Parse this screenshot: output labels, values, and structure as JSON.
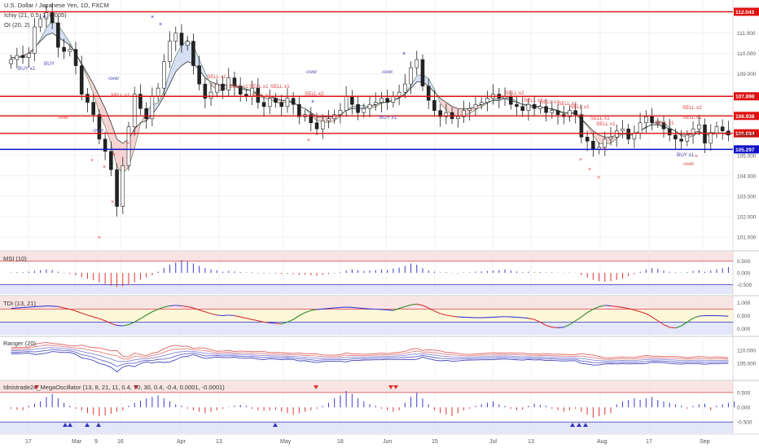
{
  "header": {
    "symbol_title": "U.S. Dollar / Japanese Yen, 1D, FXCM",
    "ichimoku_label": "Ichiy (21, 0.5, 1, 0.005)",
    "oi_label": "OI (20, 2)"
  },
  "colors": {
    "bull": "#26a69a",
    "bear": "#ef5350",
    "candle_body_up": "#ffffff",
    "candle_body_down": "#222222",
    "resistance": "#e01010",
    "support": "#1010c8",
    "cloud_bear": "#f4c4c4",
    "cloud_bull": "#c8d4f0",
    "buy_marker": "#2020c0",
    "sell_marker": "#e04040"
  },
  "chart_data": [
    {
      "type": "line",
      "title": "U.S. Dollar / Japanese Yen, 1D, FXCM",
      "x_ticks": [
        "17",
        "Mar",
        "9",
        "16",
        "Apr",
        "13",
        "May",
        "18",
        "Jun",
        "15",
        "Jul",
        "13",
        "Aug",
        "17",
        "Sep"
      ],
      "ylim": [
        100.6,
        112.3
      ],
      "y_ticks": [
        "101.000",
        "102.000",
        "103.000",
        "104.000",
        "105.000",
        "106.000",
        "107.000",
        "108.000",
        "109.000",
        "110.000",
        "111.000",
        "112.000"
      ],
      "levels": [
        {
          "value": 112.043,
          "label": "112.043",
          "color": "#e01010"
        },
        {
          "value": 107.898,
          "label": "107.898",
          "color": "#e01010"
        },
        {
          "value": 106.938,
          "label": "106.938",
          "color": "#e01010"
        },
        {
          "value": 106.084,
          "label": "106.084",
          "color": "#e01010"
        },
        {
          "value": 105.297,
          "label": "105.297",
          "color": "#1010c8"
        }
      ],
      "current_price": {
        "value": 106.024,
        "label": "106.024"
      },
      "series": [
        {
          "name": "Close",
          "values": [
            109.7,
            109.9,
            109.8,
            110.0,
            111.3,
            111.7,
            112.0,
            111.5,
            110.3,
            110.1,
            110.2,
            109.4,
            108.0,
            107.6,
            107.0,
            105.8,
            105.2,
            104.3,
            102.5,
            104.5,
            106.4,
            108.0,
            107.3,
            106.8,
            107.9,
            108.3,
            109.6,
            110.6,
            111.0,
            110.4,
            110.6,
            109.4,
            108.5,
            107.8,
            108.1,
            108.5,
            108.2,
            108.8,
            108.4,
            108.0,
            107.9,
            108.3,
            107.6,
            107.4,
            107.8,
            107.6,
            107.4,
            107.8,
            107.5,
            106.9,
            107.0,
            106.6,
            106.3,
            106.7,
            106.8,
            107.0,
            107.2,
            107.9,
            107.5,
            107.1,
            107.3,
            107.5,
            107.6,
            107.8,
            107.6,
            107.9,
            108.1,
            108.5,
            109.3,
            109.7,
            108.4,
            107.7,
            107.2,
            106.9,
            107.1,
            106.8,
            106.9,
            107.2,
            107.3,
            107.5,
            107.6,
            107.8,
            108.0,
            107.8,
            107.9,
            107.5,
            107.4,
            107.2,
            107.5,
            107.3,
            107.4,
            107.1,
            107.2,
            107.0,
            106.9,
            107.2,
            107.0,
            105.9,
            105.7,
            105.3,
            105.4,
            105.8,
            105.9,
            106.2,
            106.3,
            105.8,
            106.1,
            106.6,
            106.9,
            106.6,
            106.6,
            106.3,
            106.0,
            105.8,
            105.7,
            106.0,
            106.3,
            106.5,
            105.6,
            106.1,
            106.4,
            106.2,
            106.0
          ],
          "color": "#222222"
        },
        {
          "name": "Kijun",
          "color": "#222222",
          "values": [
            109.8,
            109.8,
            109.9,
            110.0,
            110.3,
            110.6,
            110.9,
            111.0,
            110.8,
            110.6,
            110.4,
            110.0,
            109.5,
            109.0,
            108.5,
            107.9,
            107.3,
            106.6,
            105.8,
            105.6,
            105.8,
            106.3,
            106.6,
            106.7,
            107.0,
            107.4,
            107.9,
            108.5,
            109.1,
            109.4,
            109.6,
            109.5,
            109.2,
            108.8,
            108.6,
            108.5,
            108.4,
            108.5,
            108.4,
            108.3,
            108.2,
            108.2,
            108.0,
            107.9,
            107.9,
            107.8,
            107.7,
            107.7,
            107.6,
            107.4,
            107.3,
            107.1,
            106.9,
            106.9,
            106.9,
            106.9,
            107.0,
            107.2,
            107.3,
            107.3,
            107.3,
            107.4,
            107.5,
            107.6,
            107.6,
            107.7,
            107.8,
            108.0,
            108.3,
            108.6,
            108.6,
            108.4,
            108.1,
            107.8,
            107.6,
            107.4,
            107.3,
            107.3,
            107.3,
            107.4,
            107.5,
            107.6,
            107.7,
            107.7,
            107.8,
            107.7,
            107.6,
            107.5,
            107.5,
            107.4,
            107.4,
            107.3,
            107.3,
            107.2,
            107.1,
            107.1,
            107.1,
            106.8,
            106.5,
            106.2,
            106.0,
            105.9,
            105.9,
            106.0,
            106.1,
            106.0,
            106.0,
            106.2,
            106.4,
            106.5,
            106.5,
            106.4,
            106.3,
            106.2,
            106.0,
            106.0,
            106.1,
            106.2,
            106.0,
            106.0,
            106.1,
            106.1,
            106.0
          ]
        }
      ],
      "annotations": [
        {
          "text": "BUY x1",
          "color": "#4a4ab0"
        },
        {
          "text": "BUY",
          "color": "#4a4ab0"
        },
        {
          "text": "-over",
          "color": "#4a4ab0"
        },
        {
          "text": "SELL x1",
          "color": "#e04040"
        },
        {
          "text": "-over",
          "color": "#e04040"
        },
        {
          "text": "-over",
          "color": "#4a4ab0"
        },
        {
          "text": "SELL x1",
          "color": "#e04040"
        },
        {
          "text": "SELL x1",
          "color": "#e04040"
        },
        {
          "text": "SELL x1",
          "color": "#e04040"
        },
        {
          "text": "SELL x1",
          "color": "#e04040"
        },
        {
          "text": "SELL x1",
          "color": "#e04040"
        },
        {
          "text": "-over",
          "color": "#4a4ab0"
        },
        {
          "text": "SELL x2",
          "color": "#e04040"
        },
        {
          "text": "-over",
          "color": "#4a4ab0"
        },
        {
          "text": "BUY x1",
          "color": "#4a4ab0"
        },
        {
          "text": "SELL x2",
          "color": "#e04040"
        },
        {
          "text": "SELL x1",
          "color": "#e04040"
        },
        {
          "text": "SELL x1",
          "color": "#e04040"
        },
        {
          "text": "SELL x1",
          "color": "#e04040"
        },
        {
          "text": "SELL x1",
          "color": "#e04040"
        },
        {
          "text": "SELL x1",
          "color": "#e04040"
        },
        {
          "text": "SELL x1",
          "color": "#e04040"
        },
        {
          "text": "SELL x1",
          "color": "#e04040"
        },
        {
          "text": "SELL x2",
          "color": "#e04040"
        },
        {
          "text": "SELL x1",
          "color": "#e04040"
        },
        {
          "text": "BUY x1",
          "color": "#4a4ab0"
        },
        {
          "text": "-over",
          "color": "#e04040"
        }
      ]
    },
    {
      "type": "bar",
      "title": "MSI (10)",
      "ylim": [
        -0.8,
        0.8
      ],
      "y_ticks": [
        "0.500",
        "0.000",
        "-0.500"
      ],
      "bands": {
        "upper": 0.5,
        "lower": -0.5
      },
      "values": [
        0.02,
        0.03,
        0.04,
        0.05,
        0.08,
        0.12,
        0.15,
        0.12,
        0.05,
        -0.02,
        -0.05,
        -0.1,
        -0.18,
        -0.25,
        -0.32,
        -0.4,
        -0.48,
        -0.55,
        -0.6,
        -0.58,
        -0.5,
        -0.4,
        -0.3,
        -0.2,
        -0.1,
        0.05,
        0.2,
        0.35,
        0.45,
        0.55,
        0.5,
        0.4,
        0.3,
        0.2,
        0.15,
        0.1,
        0.05,
        0.08,
        0.06,
        0.04,
        0.02,
        0.03,
        -0.02,
        -0.04,
        -0.02,
        -0.03,
        -0.05,
        -0.04,
        -0.06,
        -0.08,
        -0.07,
        -0.1,
        -0.12,
        -0.08,
        -0.05,
        -0.02,
        0.03,
        0.1,
        0.15,
        0.12,
        0.08,
        0.1,
        0.12,
        0.15,
        0.12,
        0.18,
        0.22,
        0.3,
        0.4,
        0.35,
        0.2,
        0.1,
        0.05,
        0.02,
        0.04,
        -0.02,
        -0.03,
        0.02,
        0.03,
        0.05,
        0.06,
        0.08,
        0.1,
        0.12,
        0.14,
        0.1,
        0.06,
        0.04,
        0.05,
        0.03,
        0.04,
        0.02,
        0.03,
        0.01,
        -0.02,
        0.02,
        0.01,
        -0.1,
        -0.2,
        -0.3,
        -0.35,
        -0.38,
        -0.35,
        -0.3,
        -0.25,
        -0.15,
        -0.05,
        0.05,
        0.15,
        0.2,
        0.18,
        0.1,
        0.05,
        0.03,
        0.02,
        0.04,
        0.08,
        0.12,
        0.05,
        0.1,
        0.15,
        0.2,
        0.25
      ],
      "colors": {
        "positive": "#3a3ad0",
        "negative": "#e03030",
        "neutral": "#2a8a2a"
      }
    },
    {
      "type": "line",
      "title": "TDI (13, 21)",
      "ylim": [
        -0.15,
        1.15
      ],
      "y_ticks": [
        "1.000",
        "0.500",
        "0.000"
      ],
      "bands": {
        "upper": 0.75,
        "lower": 0.25
      },
      "values": [
        0.78,
        0.8,
        0.82,
        0.83,
        0.85,
        0.86,
        0.88,
        0.87,
        0.85,
        0.8,
        0.75,
        0.68,
        0.6,
        0.52,
        0.45,
        0.38,
        0.3,
        0.2,
        0.12,
        0.1,
        0.15,
        0.25,
        0.38,
        0.52,
        0.65,
        0.75,
        0.83,
        0.88,
        0.9,
        0.88,
        0.85,
        0.8,
        0.72,
        0.65,
        0.58,
        0.52,
        0.5,
        0.52,
        0.5,
        0.45,
        0.4,
        0.35,
        0.3,
        0.25,
        0.22,
        0.2,
        0.18,
        0.25,
        0.35,
        0.5,
        0.62,
        0.7,
        0.74,
        0.76,
        0.78,
        0.8,
        0.82,
        0.83,
        0.82,
        0.8,
        0.78,
        0.76,
        0.75,
        0.74,
        0.72,
        0.7,
        0.78,
        0.85,
        0.92,
        0.95,
        0.9,
        0.8,
        0.68,
        0.58,
        0.52,
        0.48,
        0.45,
        0.44,
        0.43,
        0.42,
        0.42,
        0.43,
        0.44,
        0.45,
        0.46,
        0.45,
        0.44,
        0.42,
        0.4,
        0.35,
        0.25,
        0.12,
        0.05,
        0.03,
        0.05,
        0.15,
        0.3,
        0.45,
        0.62,
        0.75,
        0.85,
        0.9,
        0.88,
        0.85,
        0.82,
        0.78,
        0.72,
        0.65,
        0.58,
        0.45,
        0.3,
        0.15,
        0.05,
        0.02,
        0.1,
        0.25,
        0.4,
        0.48,
        0.5,
        0.5,
        0.5,
        0.49,
        0.48
      ],
      "colors": {
        "line": "#3a3ad0",
        "down": "#d03030",
        "up": "#2a8a2a"
      }
    },
    {
      "type": "line",
      "title": "Ranger (20)",
      "ylim": [
        100.0,
        114.0
      ],
      "y_ticks": [
        "110.000",
        "105.000"
      ],
      "series": [
        {
          "name": "upper-2",
          "color": "#e06060",
          "offset": 1.8
        },
        {
          "name": "upper-1",
          "color": "#e08080",
          "offset": 0.9
        },
        {
          "name": "mid",
          "color": "#8888dd",
          "offset": 0
        },
        {
          "name": "lower-1",
          "color": "#6666cc",
          "offset": -0.9
        },
        {
          "name": "lower-2",
          "color": "#4444bb",
          "offset": -1.8
        }
      ]
    },
    {
      "type": "bar",
      "title": "Idnistrade24_MegaOscillator (13, 8, 21, 11, 0.4, 70, 30, 0.4, -0.4, 0.0001, -0.0001)",
      "ylim": [
        -0.8,
        0.8
      ],
      "y_ticks": [
        "0.500",
        "0.000",
        "-0.500"
      ],
      "bands": {
        "upper": 0.5,
        "lower": -0.5
      },
      "values": [
        -0.05,
        -0.08,
        -0.1,
        0.05,
        0.12,
        0.2,
        0.35,
        0.45,
        0.3,
        0.15,
        0.05,
        -0.05,
        -0.1,
        -0.2,
        -0.25,
        -0.3,
        -0.28,
        -0.22,
        -0.15,
        -0.1,
        0.05,
        0.15,
        0.22,
        0.3,
        0.35,
        0.4,
        0.3,
        0.2,
        0.1,
        0.05,
        -0.05,
        -0.1,
        -0.15,
        -0.2,
        -0.15,
        -0.1,
        -0.05,
        0.02,
        0.05,
        0.08,
        0.05,
        -0.05,
        -0.1,
        -0.12,
        -0.1,
        -0.08,
        -0.15,
        -0.2,
        -0.25,
        -0.2,
        -0.15,
        -0.1,
        -0.05,
        0.05,
        0.15,
        0.3,
        0.4,
        0.55,
        0.45,
        0.3,
        0.2,
        0.1,
        0.05,
        -0.05,
        -0.1,
        -0.15,
        -0.1,
        0.15,
        0.35,
        0.5,
        0.3,
        0.1,
        -0.1,
        -0.2,
        -0.25,
        -0.3,
        -0.2,
        -0.1,
        -0.05,
        0.05,
        0.1,
        0.15,
        0.2,
        0.1,
        0.05,
        -0.05,
        -0.1,
        -0.08,
        0.05,
        0.12,
        0.08,
        0.05,
        -0.05,
        -0.1,
        -0.15,
        -0.1,
        -0.05,
        -0.15,
        -0.25,
        -0.35,
        -0.3,
        -0.25,
        -0.2,
        0.1,
        0.2,
        0.25,
        0.3,
        0.25,
        0.3,
        0.35,
        0.25,
        0.2,
        0.15,
        0.1,
        0.05,
        -0.05,
        0.05,
        0.1,
        0.12,
        -0.1,
        0.05,
        0.1,
        0.15,
        0.2
      ],
      "colors": {
        "positive": "#3a3ad0",
        "negative": "#e03030",
        "neutral": "#2a8a2a"
      }
    }
  ]
}
